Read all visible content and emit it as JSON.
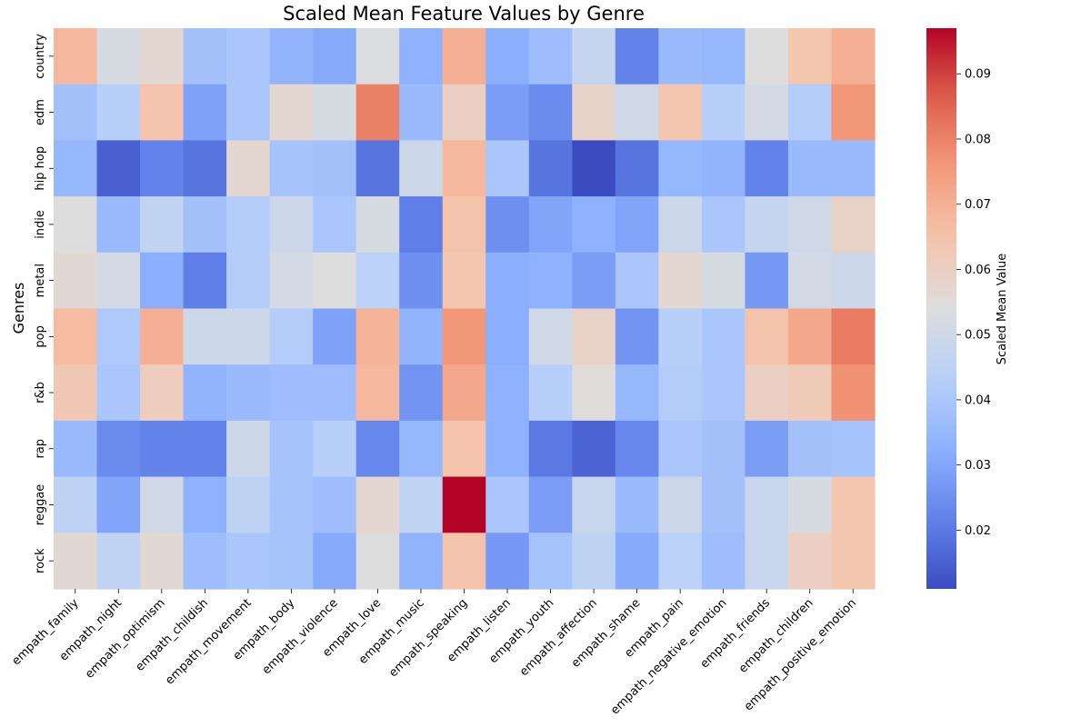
{
  "chart_data": {
    "type": "heatmap",
    "title": "Scaled Mean Feature Values by Genre",
    "xlabel": "",
    "ylabel": "Genres",
    "colorbar_label": "Scaled Mean Value",
    "colormap": "coolwarm",
    "vmin": 0.011,
    "vmax": 0.097,
    "colorbar_ticks": [
      "0.02",
      "0.03",
      "0.04",
      "0.05",
      "0.06",
      "0.07",
      "0.08",
      "0.09"
    ],
    "colorbar_tick_values": [
      0.02,
      0.03,
      0.04,
      0.05,
      0.06,
      0.07,
      0.08,
      0.09
    ],
    "columns": [
      "empath_family",
      "empath_night",
      "empath_optimism",
      "empath_childish",
      "empath_movement",
      "empath_body",
      "empath_violence",
      "empath_love",
      "empath_music",
      "empath_speaking",
      "empath_listen",
      "empath_youth",
      "empath_affection",
      "empath_shame",
      "empath_pain",
      "empath_negative_emotion",
      "empath_friends",
      "empath_children",
      "empath_positive_emotion"
    ],
    "rows": [
      "country",
      "edm",
      "hip hop",
      "indie",
      "metal",
      "pop",
      "r&b",
      "rap",
      "reggae",
      "rock"
    ],
    "values": [
      [
        0.068,
        0.052,
        0.057,
        0.038,
        0.04,
        0.034,
        0.031,
        0.053,
        0.033,
        0.07,
        0.032,
        0.037,
        0.047,
        0.022,
        0.036,
        0.035,
        0.054,
        0.064,
        0.07
      ],
      [
        0.038,
        0.043,
        0.065,
        0.029,
        0.04,
        0.057,
        0.052,
        0.08,
        0.036,
        0.06,
        0.028,
        0.024,
        0.058,
        0.05,
        0.064,
        0.043,
        0.051,
        0.042,
        0.076
      ],
      [
        0.035,
        0.015,
        0.022,
        0.019,
        0.057,
        0.039,
        0.038,
        0.019,
        0.049,
        0.068,
        0.04,
        0.019,
        0.011,
        0.019,
        0.035,
        0.034,
        0.022,
        0.036,
        0.036
      ],
      [
        0.054,
        0.036,
        0.046,
        0.038,
        0.042,
        0.049,
        0.04,
        0.052,
        0.021,
        0.065,
        0.025,
        0.03,
        0.033,
        0.03,
        0.049,
        0.04,
        0.047,
        0.05,
        0.059
      ],
      [
        0.056,
        0.051,
        0.032,
        0.021,
        0.042,
        0.051,
        0.054,
        0.044,
        0.025,
        0.064,
        0.032,
        0.033,
        0.028,
        0.04,
        0.057,
        0.052,
        0.027,
        0.051,
        0.049
      ],
      [
        0.067,
        0.041,
        0.07,
        0.049,
        0.049,
        0.042,
        0.029,
        0.069,
        0.034,
        0.076,
        0.032,
        0.05,
        0.059,
        0.026,
        0.043,
        0.04,
        0.065,
        0.072,
        0.081
      ],
      [
        0.063,
        0.04,
        0.061,
        0.034,
        0.036,
        0.037,
        0.037,
        0.068,
        0.026,
        0.072,
        0.033,
        0.043,
        0.055,
        0.035,
        0.042,
        0.04,
        0.06,
        0.062,
        0.077
      ],
      [
        0.036,
        0.024,
        0.022,
        0.022,
        0.049,
        0.039,
        0.043,
        0.023,
        0.035,
        0.065,
        0.033,
        0.02,
        0.016,
        0.023,
        0.04,
        0.038,
        0.028,
        0.038,
        0.039
      ],
      [
        0.045,
        0.03,
        0.05,
        0.033,
        0.045,
        0.039,
        0.037,
        0.057,
        0.046,
        0.097,
        0.04,
        0.028,
        0.048,
        0.036,
        0.049,
        0.038,
        0.048,
        0.052,
        0.064
      ],
      [
        0.056,
        0.046,
        0.056,
        0.037,
        0.04,
        0.039,
        0.031,
        0.054,
        0.034,
        0.065,
        0.027,
        0.039,
        0.045,
        0.031,
        0.044,
        0.037,
        0.048,
        0.06,
        0.064
      ]
    ]
  }
}
